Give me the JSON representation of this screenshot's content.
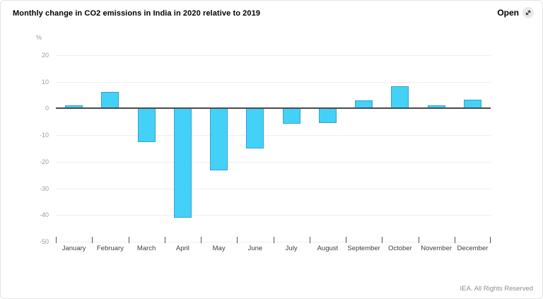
{
  "header": {
    "title": "Monthly change in CO2 emissions in India in 2020 relative to 2019",
    "open_label": "Open",
    "open_icon": "expand-diagonal-arrow-icon"
  },
  "footer": {
    "attribution": "IEA. All Rights Reserved"
  },
  "colors": {
    "bar_fill": "#44d1f7",
    "bar_border": "#2fa3d4",
    "zero_line": "#4a4a4a",
    "gridline": "#eeeeee",
    "y_axis_label": "#9c9c9c",
    "x_axis_label": "#404040",
    "card_border": "#e4e4e4"
  },
  "chart_data": {
    "type": "bar",
    "title": "Monthly change in CO2 emissions in India in 2020 relative to 2019",
    "unit_label": "%",
    "categories": [
      "January",
      "February",
      "March",
      "April",
      "May",
      "June",
      "July",
      "August",
      "September",
      "October",
      "November",
      "December"
    ],
    "values": [
      1.3,
      6.1,
      -12.5,
      -41.0,
      -23.2,
      -15.1,
      -5.7,
      -5.4,
      2.9,
      8.4,
      1.1,
      3.4
    ],
    "xlabel": "",
    "ylabel": "%",
    "ylim": [
      -50,
      20
    ],
    "yticks": [
      20,
      10,
      0,
      -10,
      -20,
      -30,
      -40,
      -50
    ],
    "grid": true,
    "legend_position": "none",
    "bar_width_fraction": 0.49
  }
}
